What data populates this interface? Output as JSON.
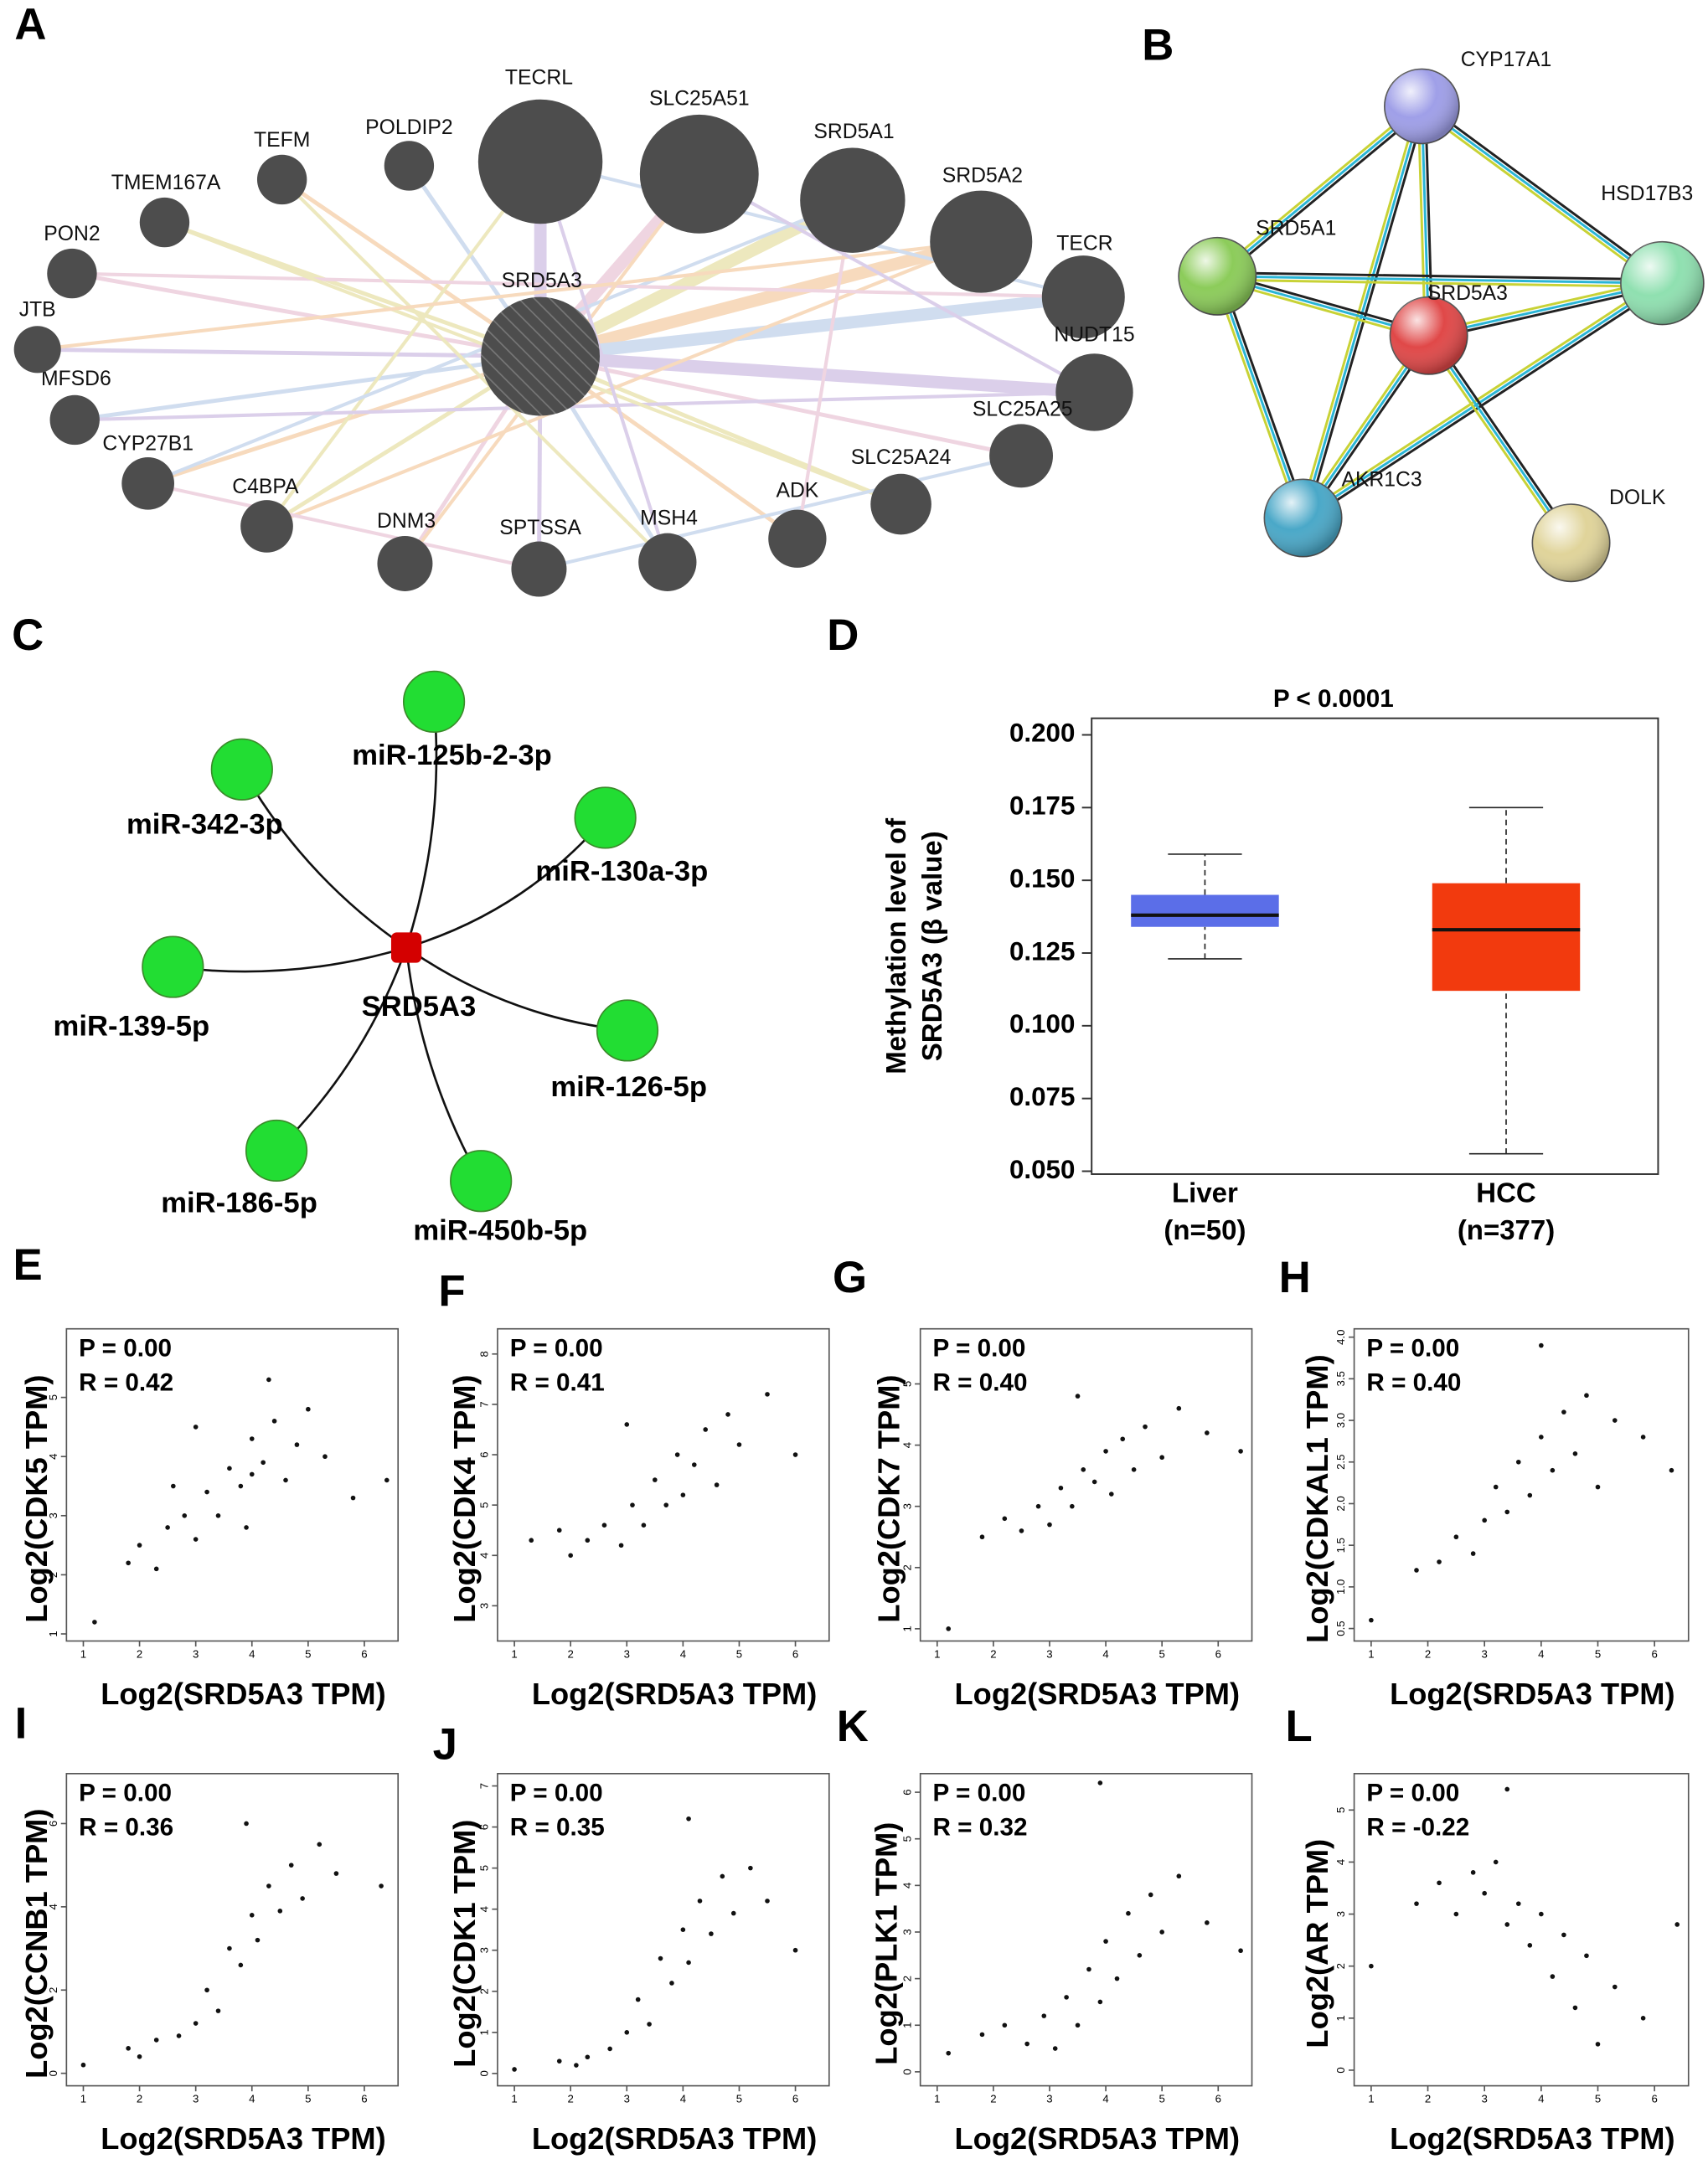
{
  "chart_data": [
    {
      "type": "network",
      "panel_label": "A",
      "center": "SRD5A3",
      "color": "#4d4d4d",
      "nodes": [
        {
          "label": "TECRL"
        },
        {
          "label": "SLC25A51"
        },
        {
          "label": "SRD5A1"
        },
        {
          "label": "SRD5A2"
        },
        {
          "label": "TECR"
        },
        {
          "label": "NUDT15"
        },
        {
          "label": "SLC25A25"
        },
        {
          "label": "SLC25A24"
        },
        {
          "label": "ADK"
        },
        {
          "label": "MSH4"
        },
        {
          "label": "SPTSSA"
        },
        {
          "label": "DNM3"
        },
        {
          "label": "C4BPA"
        },
        {
          "label": "CYP27B1"
        },
        {
          "label": "MFSD6"
        },
        {
          "label": "JTB"
        },
        {
          "label": "PON2"
        },
        {
          "label": "TMEM167A"
        },
        {
          "label": "TEFM"
        },
        {
          "label": "POLDIP2"
        }
      ]
    },
    {
      "type": "network",
      "panel_label": "B",
      "nodes": [
        {
          "label": "CYP17A1",
          "color": "#9f9fe8"
        },
        {
          "label": "SRD5A1",
          "color": "#8ccc5a"
        },
        {
          "label": "HSD17B3",
          "color": "#8fe0b0"
        },
        {
          "label": "SRD5A3",
          "color": "#e04848"
        },
        {
          "label": "AKR1C3",
          "color": "#4aa8c8"
        },
        {
          "label": "DOLK",
          "color": "#e0d49a"
        }
      ]
    },
    {
      "type": "network",
      "panel_label": "C",
      "center": "SRD5A3",
      "center_color": "#d40000",
      "color": "#22dd33",
      "nodes": [
        {
          "label": "miR-125b-2-3p"
        },
        {
          "label": "miR-342-3p"
        },
        {
          "label": "miR-130a-3p"
        },
        {
          "label": "miR-139-5p"
        },
        {
          "label": "miR-126-5p"
        },
        {
          "label": "miR-186-5p"
        },
        {
          "label": "miR-450b-5p"
        }
      ]
    },
    {
      "type": "box",
      "panel_label": "D",
      "annotation": "P < 0.0001",
      "y_label": [
        "Methylation level of",
        "SRD5A3 (β value)"
      ],
      "categories": [
        "Liver",
        "HCC"
      ],
      "category_notes": [
        "(n=50)",
        "(n=377)"
      ],
      "boxes": [
        {
          "color": "#5b6ee8",
          "whisker_low": 0.123,
          "q1": 0.134,
          "median": 0.138,
          "q3": 0.145,
          "whisker_high": 0.159
        },
        {
          "color": "#f23a0e",
          "whisker_low": 0.056,
          "q1": 0.112,
          "median": 0.133,
          "q3": 0.149,
          "whisker_high": 0.175
        }
      ],
      "ylim": [
        0.049,
        0.2057
      ],
      "yticks": [
        {
          "value": 0.05,
          "label": "0.050"
        },
        0.075,
        {
          "value": 0.1,
          "label": "0.100"
        },
        0.125,
        {
          "value": 0.15,
          "label": "0.150"
        },
        0.175,
        {
          "value": 0.2,
          "label": "0.200"
        }
      ]
    },
    {
      "type": "scatter",
      "panel_label": "E",
      "annotations": [
        "P = 0.00",
        "R = 0.42"
      ],
      "x_label": "Log2(SRD5A3 TPM)",
      "y_label": "Log2(CDK5 TPM)",
      "xlim": [
        0.7,
        6.6
      ],
      "xticks": [
        1,
        2,
        3,
        4,
        5,
        6
      ],
      "ylim": [
        0.88,
        6.16
      ],
      "yticks": [
        1,
        2,
        3,
        4,
        5
      ],
      "x": [
        1.2,
        1.8,
        2.0,
        2.3,
        2.5,
        2.8,
        3.0,
        3.2,
        3.4,
        3.6,
        3.8,
        4.0,
        4.0,
        4.2,
        4.4,
        4.6,
        4.8,
        5.0,
        5.3,
        5.8,
        3.0,
        2.6,
        4.3,
        3.9,
        6.4
      ],
      "values": [
        1.2,
        2.2,
        2.5,
        2.1,
        2.8,
        3.0,
        2.6,
        3.4,
        3.0,
        3.8,
        3.5,
        3.7,
        4.3,
        3.9,
        4.6,
        3.6,
        4.2,
        4.8,
        4.0,
        3.3,
        4.5,
        3.5,
        5.3,
        2.8,
        3.6
      ]
    },
    {
      "type": "scatter",
      "panel_label": "F",
      "annotations": [
        "P = 0.00",
        "R = 0.41"
      ],
      "x_label": "Log2(SRD5A3 TPM)",
      "y_label": "Log2(CDK4 TPM)",
      "xlim": [
        0.7,
        6.6
      ],
      "xticks": [
        1,
        2,
        3,
        4,
        5,
        6
      ],
      "ylim": [
        2.3,
        8.5
      ],
      "yticks": [
        3,
        4,
        5,
        6,
        7,
        8
      ],
      "x": [
        1.3,
        1.8,
        2.0,
        2.3,
        2.6,
        2.9,
        3.1,
        3.3,
        3.5,
        3.7,
        3.9,
        4.0,
        4.2,
        4.4,
        4.6,
        4.8,
        5.0,
        5.5,
        3.0,
        6.0
      ],
      "values": [
        4.3,
        4.5,
        4.0,
        4.3,
        4.6,
        4.2,
        5.0,
        4.6,
        5.5,
        5.0,
        6.0,
        5.2,
        5.8,
        6.5,
        5.4,
        6.8,
        6.2,
        7.2,
        6.6,
        6.0
      ]
    },
    {
      "type": "scatter",
      "panel_label": "G",
      "annotations": [
        "P = 0.00",
        "R = 0.40"
      ],
      "x_label": "Log2(SRD5A3 TPM)",
      "y_label": "Log2(CDK7 TPM)",
      "xlim": [
        0.7,
        6.6
      ],
      "xticks": [
        1,
        2,
        3,
        4,
        5,
        6
      ],
      "ylim": [
        0.8,
        5.9
      ],
      "yticks": [
        1,
        2,
        3,
        4,
        5
      ],
      "x": [
        1.2,
        1.8,
        2.2,
        2.5,
        2.8,
        3.0,
        3.2,
        3.4,
        3.6,
        3.8,
        4.0,
        4.1,
        4.3,
        4.5,
        4.7,
        5.0,
        5.3,
        5.8,
        3.5,
        6.4
      ],
      "values": [
        1.0,
        2.5,
        2.8,
        2.6,
        3.0,
        2.7,
        3.3,
        3.0,
        3.6,
        3.4,
        3.9,
        3.2,
        4.1,
        3.6,
        4.3,
        3.8,
        4.6,
        4.2,
        4.8,
        3.9
      ]
    },
    {
      "type": "scatter",
      "panel_label": "H",
      "annotations": [
        "P = 0.00",
        "R = 0.40"
      ],
      "x_label": "Log2(SRD5A3 TPM)",
      "y_label": "Log2(CDKAL1 TPM)",
      "xlim": [
        0.7,
        6.6
      ],
      "xticks": [
        1,
        2,
        3,
        4,
        5,
        6
      ],
      "ylim": [
        0.35,
        4.1
      ],
      "yticks": [
        0.5,
        {
          "value": 1,
          "label": "1.0"
        },
        1.5,
        {
          "value": 2,
          "label": "2.0"
        },
        2.5,
        {
          "value": 3,
          "label": "3.0"
        },
        3.5,
        {
          "value": 4,
          "label": "4.0"
        }
      ],
      "x": [
        1.0,
        1.8,
        2.2,
        2.5,
        2.8,
        3.0,
        3.2,
        3.4,
        3.6,
        3.8,
        4.0,
        4.2,
        4.4,
        4.6,
        4.8,
        5.0,
        5.3,
        5.8,
        4.0,
        6.3
      ],
      "values": [
        0.6,
        1.2,
        1.3,
        1.6,
        1.4,
        1.8,
        2.2,
        1.9,
        2.5,
        2.1,
        2.8,
        2.4,
        3.1,
        2.6,
        3.3,
        2.2,
        3.0,
        2.8,
        3.9,
        2.4
      ]
    },
    {
      "type": "scatter",
      "panel_label": "I",
      "annotations": [
        "P = 0.00",
        "R = 0.36"
      ],
      "x_label": "Log2(SRD5A3 TPM)",
      "y_label": "Log2(CCNB1 TPM)",
      "xlim": [
        0.7,
        6.6
      ],
      "xticks": [
        1,
        2,
        3,
        4,
        5,
        6
      ],
      "ylim": [
        -0.3,
        7.2
      ],
      "yticks": [
        0,
        2,
        4,
        6
      ],
      "x": [
        1.0,
        1.8,
        2.3,
        2.7,
        3.0,
        3.2,
        3.4,
        3.6,
        3.8,
        4.0,
        4.1,
        4.3,
        4.5,
        4.7,
        4.9,
        5.2,
        5.5,
        3.9,
        6.3,
        2.0
      ],
      "values": [
        0.2,
        0.6,
        0.8,
        0.9,
        1.2,
        2.0,
        1.5,
        3.0,
        2.6,
        3.8,
        3.2,
        4.5,
        3.9,
        5.0,
        4.2,
        5.5,
        4.8,
        6.0,
        4.5,
        0.4
      ]
    },
    {
      "type": "scatter",
      "panel_label": "J",
      "annotations": [
        "P = 0.00",
        "R = 0.35"
      ],
      "x_label": "Log2(SRD5A3 TPM)",
      "y_label": "Log2(CDK1 TPM)",
      "xlim": [
        0.7,
        6.6
      ],
      "xticks": [
        1,
        2,
        3,
        4,
        5,
        6
      ],
      "ylim": [
        -0.3,
        7.3
      ],
      "yticks": [
        0,
        1,
        2,
        3,
        4,
        5,
        6,
        7
      ],
      "x": [
        1.0,
        1.8,
        2.3,
        2.7,
        3.0,
        3.2,
        3.4,
        3.6,
        3.8,
        4.0,
        4.1,
        4.3,
        4.5,
        4.7,
        4.9,
        5.2,
        5.5,
        4.1,
        6.0,
        2.1
      ],
      "values": [
        0.1,
        0.3,
        0.4,
        0.6,
        1.0,
        1.8,
        1.2,
        2.8,
        2.2,
        3.5,
        2.7,
        4.2,
        3.4,
        4.8,
        3.9,
        5.0,
        4.2,
        6.2,
        3.0,
        0.2
      ]
    },
    {
      "type": "scatter",
      "panel_label": "K",
      "annotations": [
        "P = 0.00",
        "R = 0.32"
      ],
      "x_label": "Log2(SRD5A3 TPM)",
      "y_label": "Log2(PLK1 TPM)",
      "xlim": [
        0.7,
        6.6
      ],
      "xticks": [
        1,
        2,
        3,
        4,
        5,
        6
      ],
      "ylim": [
        -0.3,
        6.4
      ],
      "yticks": [
        0,
        1,
        2,
        3,
        4,
        5,
        6
      ],
      "x": [
        1.2,
        1.8,
        2.2,
        2.6,
        2.9,
        3.1,
        3.3,
        3.5,
        3.7,
        3.9,
        4.0,
        4.2,
        4.4,
        4.6,
        4.8,
        5.0,
        5.3,
        5.8,
        3.9,
        6.4
      ],
      "values": [
        0.4,
        0.8,
        1.0,
        0.6,
        1.2,
        0.5,
        1.6,
        1.0,
        2.2,
        1.5,
        2.8,
        2.0,
        3.4,
        2.5,
        3.8,
        3.0,
        4.2,
        3.2,
        6.2,
        2.6
      ]
    },
    {
      "type": "scatter",
      "panel_label": "L",
      "annotations": [
        "P = 0.00",
        "R = -0.22"
      ],
      "x_label": "Log2(SRD5A3 TPM)",
      "y_label": "Log2(AR TPM)",
      "xlim": [
        0.7,
        6.6
      ],
      "xticks": [
        1,
        2,
        3,
        4,
        5,
        6
      ],
      "ylim": [
        -0.3,
        5.7
      ],
      "yticks": [
        0,
        1,
        2,
        3,
        4,
        5
      ],
      "x": [
        1.0,
        1.8,
        2.2,
        2.5,
        2.8,
        3.0,
        3.2,
        3.4,
        3.6,
        3.8,
        4.0,
        4.2,
        4.4,
        4.6,
        4.8,
        5.0,
        5.3,
        5.8,
        3.4,
        6.4
      ],
      "values": [
        2.0,
        3.2,
        3.6,
        3.0,
        3.8,
        3.4,
        4.0,
        2.8,
        3.2,
        2.4,
        3.0,
        1.8,
        2.6,
        1.2,
        2.2,
        0.5,
        1.6,
        1.0,
        5.4,
        2.8
      ]
    }
  ]
}
